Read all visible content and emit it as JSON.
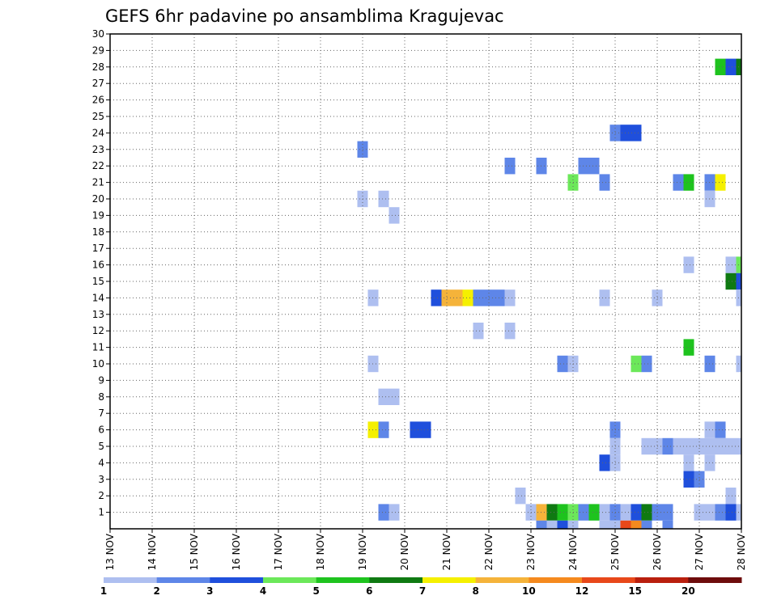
{
  "chart_data": {
    "type": "heatmap",
    "title": "GEFS 6hr padavine po ansamblima Kragujevac",
    "x_tick_labels": [
      "13 NOV",
      "14 NOV",
      "15 NOV",
      "16 NOV",
      "17 NOV",
      "18 NOV",
      "19 NOV",
      "20 NOV",
      "21 NOV",
      "22 NOV",
      "23 NOV",
      "24 NOV",
      "25 NOV",
      "26 NOV",
      "27 NOV",
      "28 NOV"
    ],
    "y_tick_labels": [
      "1",
      "2",
      "3",
      "4",
      "5",
      "6",
      "7",
      "8",
      "9",
      "10",
      "11",
      "12",
      "13",
      "14",
      "15",
      "16",
      "17",
      "18",
      "19",
      "20",
      "21",
      "22",
      "23",
      "24",
      "25",
      "26",
      "27",
      "28",
      "29",
      "30"
    ],
    "xlim": [
      0,
      60
    ],
    "ylim": [
      0,
      30
    ],
    "x_unit": "6-hour steps from 13 NOV 00Z",
    "y_unit": "ensemble member",
    "grid": true,
    "colorbar": {
      "position": "bottom",
      "labels": [
        "1",
        "2",
        "3",
        "4",
        "5",
        "6",
        "7",
        "8",
        "10",
        "12",
        "15",
        "20"
      ],
      "colors": [
        "#aebff0",
        "#5e86e8",
        "#1f4fdc",
        "#6ce85a",
        "#1ec31e",
        "#0f7a12",
        "#f5f000",
        "#f5b33a",
        "#f58a1e",
        "#e8481a",
        "#b91f0e",
        "#6e0c0c"
      ]
    },
    "cells": [
      [
        58,
        28,
        4
      ],
      [
        59,
        28,
        2
      ],
      [
        60,
        28,
        5
      ],
      [
        48,
        24,
        1
      ],
      [
        49,
        24,
        2
      ],
      [
        50,
        24,
        2
      ],
      [
        24,
        23,
        1
      ],
      [
        38,
        22,
        1
      ],
      [
        41,
        22,
        1
      ],
      [
        45,
        22,
        1
      ],
      [
        46,
        22,
        1
      ],
      [
        44,
        21,
        3
      ],
      [
        47,
        21,
        1
      ],
      [
        54,
        21,
        1
      ],
      [
        55,
        21,
        4
      ],
      [
        57,
        21,
        1
      ],
      [
        58,
        21,
        6
      ],
      [
        24,
        20,
        0
      ],
      [
        26,
        20,
        0
      ],
      [
        57,
        20,
        0
      ],
      [
        27,
        19,
        0
      ],
      [
        59,
        16,
        0
      ],
      [
        60,
        16,
        3
      ],
      [
        55,
        16,
        0
      ],
      [
        59,
        15,
        5
      ],
      [
        60,
        15,
        2
      ],
      [
        31,
        14,
        2
      ],
      [
        32,
        14,
        7
      ],
      [
        33,
        14,
        7
      ],
      [
        34,
        14,
        6
      ],
      [
        35,
        14,
        1
      ],
      [
        36,
        14,
        1
      ],
      [
        37,
        14,
        1
      ],
      [
        38,
        14,
        0
      ],
      [
        25,
        14,
        0
      ],
      [
        47,
        14,
        0
      ],
      [
        52,
        14,
        0
      ],
      [
        60,
        14,
        0
      ],
      [
        35,
        12,
        0
      ],
      [
        38,
        12,
        0
      ],
      [
        55,
        11,
        4
      ],
      [
        25,
        10,
        0
      ],
      [
        43,
        10,
        1
      ],
      [
        44,
        10,
        0
      ],
      [
        50,
        10,
        3
      ],
      [
        51,
        10,
        1
      ],
      [
        57,
        10,
        1
      ],
      [
        60,
        10,
        0
      ],
      [
        26,
        8,
        0
      ],
      [
        27,
        8,
        0
      ],
      [
        25,
        6,
        6
      ],
      [
        26,
        6,
        1
      ],
      [
        29,
        6,
        2
      ],
      [
        30,
        6,
        2
      ],
      [
        48,
        6,
        1
      ],
      [
        57,
        6,
        0
      ],
      [
        58,
        6,
        1
      ],
      [
        48,
        5,
        0
      ],
      [
        51,
        5,
        0
      ],
      [
        52,
        5,
        0
      ],
      [
        53,
        5,
        1
      ],
      [
        54,
        5,
        0
      ],
      [
        55,
        5,
        0
      ],
      [
        56,
        5,
        0
      ],
      [
        57,
        5,
        0
      ],
      [
        58,
        5,
        0
      ],
      [
        59,
        5,
        0
      ],
      [
        60,
        5,
        0
      ],
      [
        47,
        4,
        2
      ],
      [
        48,
        4,
        0
      ],
      [
        55,
        4,
        0
      ],
      [
        57,
        4,
        0
      ],
      [
        55,
        3,
        2
      ],
      [
        56,
        3,
        1
      ],
      [
        39,
        2,
        0
      ],
      [
        59,
        2,
        0
      ],
      [
        26,
        1,
        1
      ],
      [
        27,
        1,
        0
      ],
      [
        40,
        1,
        0
      ],
      [
        41,
        1,
        7
      ],
      [
        42,
        1,
        5
      ],
      [
        43,
        1,
        4
      ],
      [
        44,
        1,
        3
      ],
      [
        45,
        1,
        1
      ],
      [
        46,
        1,
        4
      ],
      [
        47,
        1,
        0
      ],
      [
        48,
        1,
        1
      ],
      [
        49,
        1,
        0
      ],
      [
        50,
        1,
        2
      ],
      [
        51,
        1,
        5
      ],
      [
        52,
        1,
        1
      ],
      [
        53,
        1,
        1
      ],
      [
        56,
        1,
        0
      ],
      [
        57,
        1,
        0
      ],
      [
        58,
        1,
        1
      ],
      [
        59,
        1,
        2
      ],
      [
        60,
        1,
        0
      ],
      [
        41,
        0,
        1
      ],
      [
        42,
        0,
        0
      ],
      [
        43,
        0,
        2
      ],
      [
        44,
        0,
        0
      ],
      [
        47,
        0,
        0
      ],
      [
        48,
        0,
        0
      ],
      [
        49,
        0,
        9
      ],
      [
        50,
        0,
        8
      ],
      [
        51,
        0,
        1
      ],
      [
        53,
        0,
        1
      ]
    ]
  }
}
